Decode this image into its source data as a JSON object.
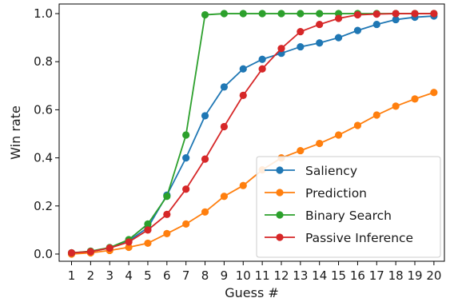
{
  "chart_data": {
    "type": "line",
    "title": "",
    "xlabel": "Guess #",
    "ylabel": "Win rate",
    "x": [
      1,
      2,
      3,
      4,
      5,
      6,
      7,
      8,
      9,
      10,
      11,
      12,
      13,
      14,
      15,
      16,
      17,
      18,
      19,
      20
    ],
    "xlim": [
      0.35,
      20.55
    ],
    "ylim": [
      -0.03,
      1.04
    ],
    "yticks": [
      0.0,
      0.2,
      0.4,
      0.6,
      0.8,
      1.0
    ],
    "ytick_labels": [
      "0.0",
      "0.2",
      "0.4",
      "0.6",
      "0.8",
      "1.0"
    ],
    "xtick_labels": [
      "1",
      "2",
      "3",
      "4",
      "5",
      "6",
      "7",
      "8",
      "9",
      "10",
      "11",
      "12",
      "13",
      "14",
      "15",
      "16",
      "17",
      "18",
      "19",
      "20"
    ],
    "grid": false,
    "legend_position": "lower-right",
    "series": [
      {
        "name": "Saliency",
        "color": "#1f77b4",
        "values": [
          0.005,
          0.01,
          0.025,
          0.055,
          0.11,
          0.245,
          0.4,
          0.575,
          0.695,
          0.77,
          0.81,
          0.835,
          0.862,
          0.878,
          0.9,
          0.93,
          0.955,
          0.975,
          0.985,
          0.99
        ]
      },
      {
        "name": "Prediction",
        "color": "#ff7f0e",
        "values": [
          0.0,
          0.005,
          0.015,
          0.028,
          0.045,
          0.085,
          0.125,
          0.175,
          0.24,
          0.285,
          0.35,
          0.4,
          0.43,
          0.46,
          0.495,
          0.535,
          0.578,
          0.615,
          0.645,
          0.672
        ]
      },
      {
        "name": "Binary Search",
        "color": "#2ca02c",
        "values": [
          0.005,
          0.012,
          0.027,
          0.06,
          0.125,
          0.24,
          0.495,
          0.995,
          1.0,
          1.0,
          1.0,
          1.0,
          1.0,
          1.0,
          1.0,
          1.0,
          1.0,
          1.0,
          1.0,
          1.0
        ]
      },
      {
        "name": "Passive Inference",
        "color": "#d62728",
        "values": [
          0.005,
          0.01,
          0.025,
          0.05,
          0.1,
          0.165,
          0.27,
          0.395,
          0.53,
          0.66,
          0.77,
          0.855,
          0.925,
          0.955,
          0.98,
          0.995,
          0.998,
          1.0,
          1.0,
          1.0
        ]
      }
    ]
  }
}
